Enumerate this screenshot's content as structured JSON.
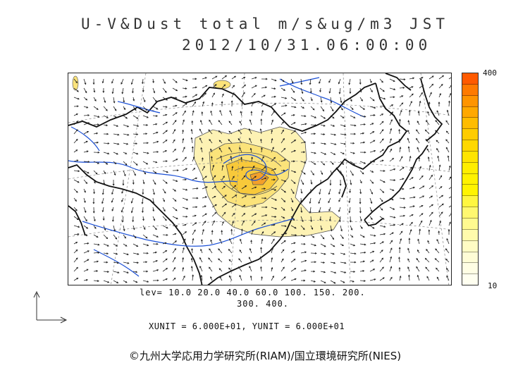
{
  "title": {
    "line1": "U-V&Dust total m/s&ug/m3 JST",
    "line2": "2012/10/31.06:00:00"
  },
  "levels": {
    "line1": "lev= 10.0 20.0 40.0 60.0 100. 150. 200.",
    "line2": "300. 400."
  },
  "units": "XUNIT = 6.000E+01, YUNIT = 6.000E+01",
  "copyright": "©九州大学応用力学研究所(RIAM)/国立環境研究所(NIES)",
  "colorbar": {
    "max_label": "400",
    "min_label": "10",
    "colors_top_to_bottom": [
      "#ff5a00",
      "#ff7a00",
      "#ff9400",
      "#ffa800",
      "#ffbc00",
      "#ffcc00",
      "#ffd800",
      "#ffe400",
      "#ffee00",
      "#fff200",
      "#fff400",
      "#fff640",
      "#fff870",
      "#fffa90",
      "#fffbac",
      "#fffcc4",
      "#fffdd6",
      "#fffee4",
      "#fffff0"
    ]
  },
  "colors": {
    "coast": "#111111",
    "river": "#1a4fd6",
    "arrow": "#222222",
    "grid": "#888888",
    "dust_light": "#fdf2b4",
    "dust_mid": "#fbe37a",
    "dust_high": "#f8c93a",
    "dust_peak": "#f3a02a"
  }
}
